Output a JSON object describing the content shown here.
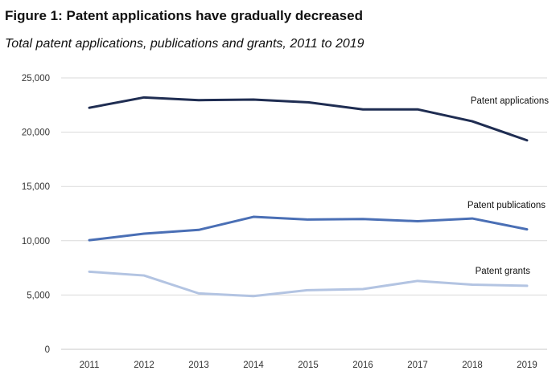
{
  "header": {
    "title": "Figure 1: Patent applications have gradually decreased",
    "subtitle": "Total patent applications, publications and grants, 2011 to 2019"
  },
  "chart_data": {
    "type": "line",
    "title": "Figure 1: Patent applications have gradually decreased",
    "subtitle": "Total patent applications, publications and grants, 2011 to 2019",
    "xlabel": "",
    "ylabel": "",
    "categories": [
      "2011",
      "2012",
      "2013",
      "2014",
      "2015",
      "2016",
      "2017",
      "2018",
      "2019"
    ],
    "ylim": [
      0,
      25000
    ],
    "yticks": [
      0,
      5000,
      10000,
      15000,
      20000,
      25000
    ],
    "ytick_labels": [
      "0",
      "5,000",
      "10,000",
      "15,000",
      "20,000",
      "25,000"
    ],
    "grid": true,
    "series": [
      {
        "name": "Patent applications",
        "color": "#1f2d52",
        "values": [
          22250,
          23200,
          22950,
          23000,
          22750,
          22100,
          22100,
          21000,
          19250
        ]
      },
      {
        "name": "Patent publications",
        "color": "#4a6fb5",
        "values": [
          10050,
          10650,
          11000,
          12200,
          11950,
          12000,
          11800,
          12050,
          11050
        ]
      },
      {
        "name": "Patent grants",
        "color": "#b3c4e2",
        "values": [
          7150,
          6800,
          5150,
          4900,
          5450,
          5550,
          6300,
          5950,
          5850
        ]
      }
    ]
  }
}
